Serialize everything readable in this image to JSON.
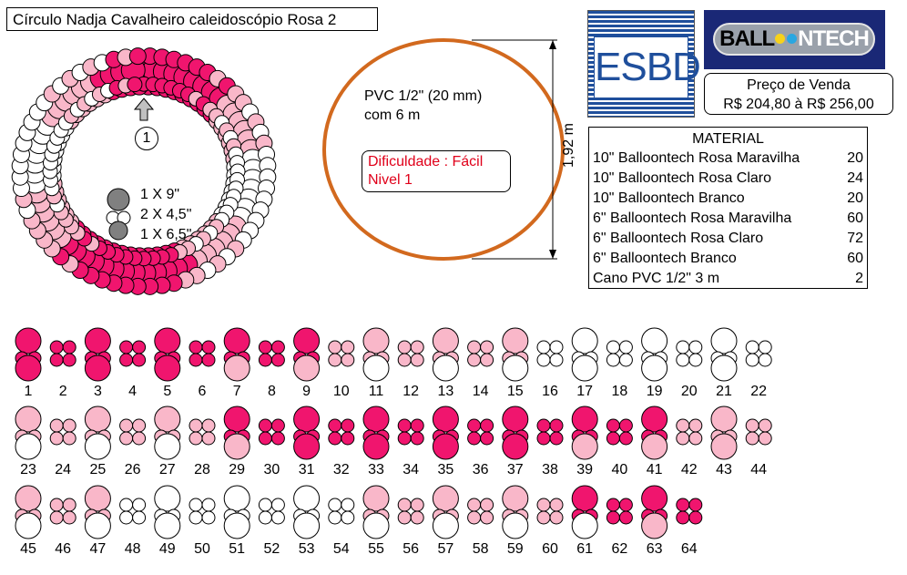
{
  "title": "Círculo Nadja Cavalheiro caleidoscópio Rosa 2",
  "logos": {
    "esbd": "ESBD",
    "balloontech": "BALLOONTECH"
  },
  "price": {
    "label": "Preço de Venda",
    "value": "R$ 204,80 à R$ 256,00"
  },
  "material": {
    "title": "MATERIAL",
    "items": [
      {
        "name": "10\" Balloontech Rosa Maravilha",
        "qty": "20"
      },
      {
        "name": "10\" Balloontech Rosa Claro",
        "qty": "24"
      },
      {
        "name": "10\" Balloontech Branco",
        "qty": "20"
      },
      {
        "name": "6\" Balloontech Rosa Maravilha",
        "qty": "60"
      },
      {
        "name": "6\" Balloontech Rosa Claro",
        "qty": "72"
      },
      {
        "name": "6\" Balloontech Branco",
        "qty": "60"
      },
      {
        "name": "Cano PVC 1/2\" 3 m",
        "qty": "2"
      }
    ]
  },
  "pvc": {
    "line1": "PVC 1/2\" (20 mm)",
    "line2": "com 6 m"
  },
  "difficulty": {
    "line1": "Dificuldade : Fácil",
    "line2": "Nivel 1"
  },
  "dimension": "1,92 m",
  "legend": {
    "marker": "1",
    "lines": [
      "1 X 9\"",
      "2 X 4,5\"",
      "1 X 6,5\""
    ]
  },
  "colors": {
    "rosa_maravilha": "#f0156e",
    "rosa_claro": "#f9b7c9",
    "branco": "#ffffff",
    "cinza": "#808080",
    "pvc_ring": "#d2691e",
    "esbd_blue": "#1f4f9c",
    "balloontech_navy": "#1a2876",
    "difficulty_red": "#e0001a"
  },
  "clusters": {
    "numbers": [
      "1",
      "2",
      "3",
      "4",
      "5",
      "6",
      "7",
      "8",
      "9",
      "10",
      "11",
      "12",
      "13",
      "14",
      "15",
      "16",
      "17",
      "18",
      "19",
      "20",
      "21",
      "22",
      "23",
      "24",
      "25",
      "26",
      "27",
      "28",
      "29",
      "30",
      "31",
      "32",
      "33",
      "34",
      "35",
      "36",
      "37",
      "38",
      "39",
      "40",
      "41",
      "42",
      "43",
      "44",
      "45",
      "46",
      "47",
      "48",
      "49",
      "50",
      "51",
      "52",
      "53",
      "54",
      "55",
      "56",
      "57",
      "58",
      "59",
      "60",
      "61",
      "62",
      "63",
      "64"
    ],
    "pattern": [
      "MM",
      "M",
      "MM",
      "M",
      "MM",
      "M",
      "MC",
      "M",
      "MC",
      "C",
      "CW",
      "C",
      "CW",
      "C",
      "CW",
      "W",
      "WW",
      "W",
      "WW",
      "W",
      "WW",
      "W",
      "CW",
      "C",
      "CW",
      "C",
      "CW",
      "C",
      "MC",
      "M",
      "MM",
      "M",
      "MM",
      "M",
      "MM",
      "M",
      "MM",
      "M",
      "MC",
      "M",
      "MC",
      "C",
      "CC",
      "C",
      "CW",
      "C",
      "CW",
      "W",
      "WW",
      "W",
      "WW",
      "W",
      "WW",
      "W",
      "CW",
      "C",
      "CW",
      "C",
      "CW",
      "C",
      "MW",
      "M",
      "MC",
      "M"
    ]
  }
}
